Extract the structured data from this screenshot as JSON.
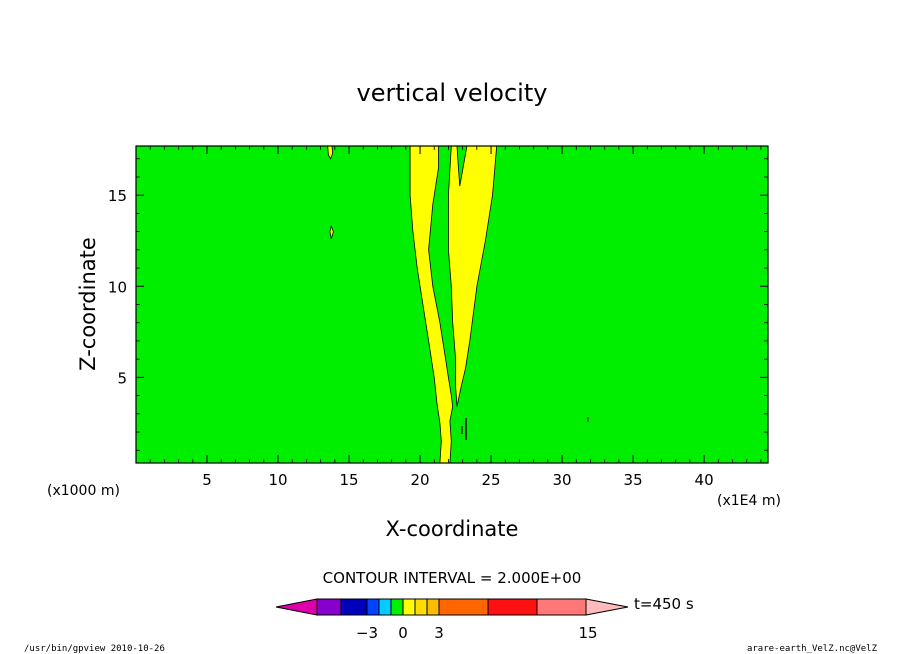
{
  "chart_data": {
    "type": "heatmap",
    "title": "vertical velocity",
    "xlabel": "X-coordinate",
    "ylabel": "Z-coordinate",
    "x_unit_left": "(x1000 m)",
    "x_unit_right": "(x1E4 m)",
    "xlim": [
      0,
      44.5
    ],
    "ylim": [
      0.3,
      17.7
    ],
    "x_ticks": [
      5,
      10,
      15,
      20,
      25,
      30,
      35,
      40
    ],
    "y_ticks": [
      5,
      10,
      15
    ],
    "background_level_color": "#00ee00",
    "regions": [
      {
        "level": "0 to 1",
        "color": "#ffff00",
        "polygon": [
          [
            19.3,
            17.7
          ],
          [
            21.3,
            17.7
          ],
          [
            21.3,
            16.5
          ],
          [
            20.9,
            14.5
          ],
          [
            20.6,
            12.0
          ],
          [
            20.9,
            10.0
          ],
          [
            21.4,
            8.0
          ],
          [
            21.8,
            6.0
          ],
          [
            22.0,
            5.0
          ],
          [
            22.2,
            4.0
          ],
          [
            22.3,
            3.4
          ],
          [
            22.1,
            2.6
          ],
          [
            22.2,
            1.5
          ],
          [
            22.1,
            0.3
          ],
          [
            21.4,
            0.3
          ],
          [
            21.5,
            1.5
          ],
          [
            21.4,
            2.5
          ],
          [
            21.2,
            3.5
          ],
          [
            21.0,
            5.0
          ],
          [
            20.6,
            7.0
          ],
          [
            20.2,
            9.0
          ],
          [
            19.8,
            11.0
          ],
          [
            19.5,
            13.0
          ],
          [
            19.3,
            15.0
          ]
        ]
      },
      {
        "level": "0 to 1",
        "color": "#ffff00",
        "polygon": [
          [
            22.2,
            17.7
          ],
          [
            22.6,
            17.7
          ],
          [
            22.7,
            16.5
          ],
          [
            22.8,
            15.5
          ],
          [
            23.3,
            17.7
          ],
          [
            25.4,
            17.7
          ],
          [
            25.1,
            15.0
          ],
          [
            24.6,
            12.5
          ],
          [
            24.0,
            10.0
          ],
          [
            23.5,
            7.0
          ],
          [
            23.2,
            5.5
          ],
          [
            22.9,
            4.5
          ],
          [
            22.6,
            3.4
          ],
          [
            22.5,
            4.5
          ],
          [
            22.5,
            6.0
          ],
          [
            22.3,
            8.0
          ],
          [
            22.2,
            10.0
          ],
          [
            22.0,
            12.0
          ],
          [
            22.0,
            15.0
          ]
        ]
      },
      {
        "level": "0 to 1",
        "color": "#ffff00",
        "polygon": [
          [
            13.5,
            17.7
          ],
          [
            13.8,
            17.7
          ],
          [
            13.85,
            17.3
          ],
          [
            13.7,
            17.0
          ],
          [
            13.55,
            17.2
          ]
        ]
      },
      {
        "level": "0 to 1",
        "color": "#ffff00",
        "polygon": [
          [
            13.65,
            13.0
          ],
          [
            13.75,
            13.3
          ],
          [
            13.9,
            13.0
          ],
          [
            13.75,
            12.6
          ]
        ]
      }
    ],
    "colorbar": {
      "contour_interval_label": "CONTOUR INTERVAL = 2.000E+00",
      "time_label": "t=450 s",
      "tick_labels": [
        "−3",
        "0",
        "3",
        "15"
      ],
      "colors": [
        "#dd00aa",
        "#8800cc",
        "#0000bb",
        "#0044ff",
        "#00ccff",
        "#00ee00",
        "#ffff00",
        "#ffdd00",
        "#ffbb00",
        "#ff6600",
        "#ff1111",
        "#ff7777",
        "#ffbbbb"
      ]
    }
  },
  "footer": {
    "left": "/usr/bin/gpview   2010-10-26",
    "right": "arare-earth_VelZ.nc@VelZ"
  }
}
